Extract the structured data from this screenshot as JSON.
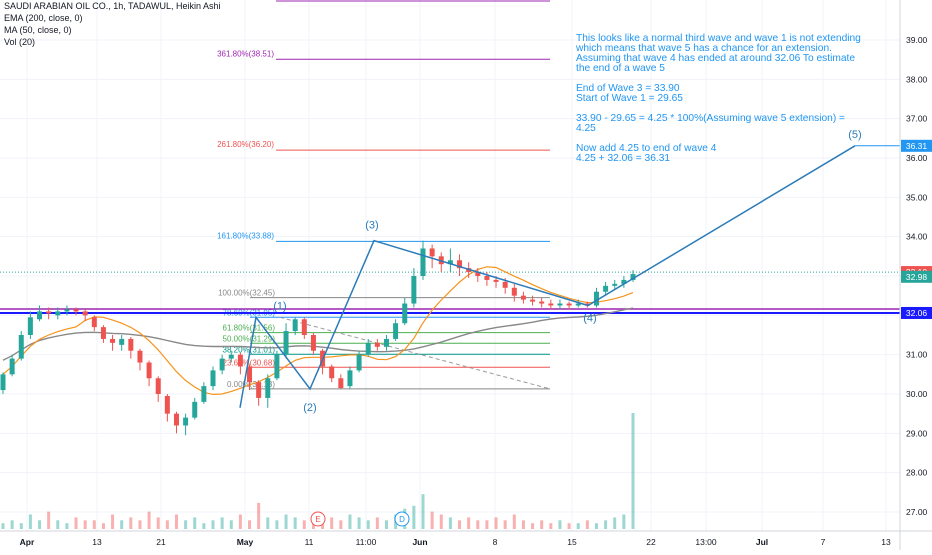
{
  "legend": {
    "title": "SAUDI ARABIAN OIL CO., 1h, TADAWUL, Heikin Ashi",
    "ema": "EMA (200, close, 0)",
    "ma": "MA (50, close, 0)",
    "vol": "Vol (20)"
  },
  "note": {
    "lines": [
      "This looks like a normal third wave and wave 1 is not extending",
      "which means that wave 5 has a chance for an extension.",
      "Assuming that wave 4 has ended at around 32.06 To estimate the end of a wave 5",
      "",
      "End of Wave 3 = 33.90",
      "Start of Wave 1 = 29.65",
      "",
      "33.90 - 29.65 = 4.25 * 100%(Assuming wave 5 extension) = 4.25",
      "",
      "Now add 4.25 to end of wave 4",
      "4.25 + 32.06 = 36.31"
    ]
  },
  "colors": {
    "up": "#26a69a",
    "down": "#ef5350",
    "ema": "#888888",
    "ma": "#f7931a",
    "wave": "#2b7bb9",
    "price_marker": "#ef5350",
    "last_marker": "#26a69a",
    "target_marker": "#2196f3",
    "support_marker": "#1a1aff"
  },
  "chart_data": {
    "type": "candlestick",
    "y_axis": {
      "ticks": [
        27.0,
        28.0,
        29.0,
        30.0,
        31.0,
        32.0,
        33.0,
        34.0,
        35.0,
        36.0,
        37.0,
        38.0,
        39.0
      ],
      "range": [
        26.55,
        39.95
      ],
      "side": "right"
    },
    "x_axis": {
      "ticks": [
        "Apr",
        "13",
        "21",
        "May",
        "11",
        "11:00",
        "Jun",
        "8",
        "15",
        "22",
        "13:00",
        "Jul",
        "7",
        "13"
      ]
    },
    "price_labels": [
      {
        "value": 36.31,
        "label": "36.31",
        "style": "target"
      },
      {
        "value": 33.1,
        "label": "33.10",
        "style": "price"
      },
      {
        "value": 32.98,
        "label": "32.98",
        "style": "last"
      },
      {
        "value": 32.06,
        "label": "32.06",
        "style": "support"
      }
    ],
    "fib_upper": [
      {
        "label": "361.80%(38.51)",
        "value": 38.51,
        "color": "#9c27b0"
      },
      {
        "label": "261.80%(36.20)",
        "value": 36.2,
        "color": "#ef5350"
      },
      {
        "label": "161.80%(33.88)",
        "value": 33.88,
        "color": "#2196f3"
      }
    ],
    "fib_lower": [
      {
        "label": "100.00%(32.45)",
        "value": 32.45,
        "color": "#888888"
      },
      {
        "label": "78.60%(31.95)",
        "value": 31.95,
        "color": "#2196f3"
      },
      {
        "label": "61.80%(31.56)",
        "value": 31.56,
        "color": "#4caf50"
      },
      {
        "label": "50.00%(31.29)",
        "value": 31.29,
        "color": "#4caf50"
      },
      {
        "label": "38.20%(31.01)",
        "value": 31.01,
        "color": "#009688"
      },
      {
        "label": "23.60%(30.68)",
        "value": 30.68,
        "color": "#ef5350"
      },
      {
        "label": "0.00%(30.13)",
        "value": 30.13,
        "color": "#888888"
      }
    ],
    "support_levels": [
      32.06,
      32.16
    ],
    "waves": [
      {
        "label": "(1)",
        "value": 31.95
      },
      {
        "label": "(2)",
        "value": 30.13
      },
      {
        "label": "(3)",
        "value": 33.9
      },
      {
        "label": "(4)",
        "value": 32.25
      },
      {
        "label": "(5)",
        "value": 36.31
      }
    ],
    "event_markers": [
      "E",
      "D"
    ],
    "candles": [
      [
        30.1,
        30.5,
        30.0,
        30.55
      ],
      [
        30.5,
        30.9,
        30.45,
        31.0
      ],
      [
        30.9,
        31.5,
        30.85,
        31.6
      ],
      [
        31.5,
        31.95,
        31.4,
        32.1
      ],
      [
        31.9,
        32.1,
        31.85,
        32.25
      ],
      [
        32.1,
        32.05,
        31.9,
        32.2
      ],
      [
        32.0,
        32.1,
        31.9,
        32.2
      ],
      [
        32.1,
        32.15,
        32.0,
        32.25
      ],
      [
        32.15,
        32.1,
        32.0,
        32.2
      ],
      [
        32.1,
        32.0,
        31.85,
        32.15
      ],
      [
        31.95,
        31.7,
        31.6,
        32.0
      ],
      [
        31.7,
        31.4,
        31.3,
        31.75
      ],
      [
        31.4,
        31.3,
        31.1,
        31.5
      ],
      [
        31.25,
        31.4,
        31.1,
        31.5
      ],
      [
        31.4,
        31.1,
        30.9,
        31.45
      ],
      [
        31.1,
        30.8,
        30.6,
        31.15
      ],
      [
        30.8,
        30.4,
        30.2,
        30.85
      ],
      [
        30.4,
        30.0,
        29.8,
        30.45
      ],
      [
        29.95,
        29.5,
        29.3,
        30.0
      ],
      [
        29.5,
        29.2,
        29.0,
        29.55
      ],
      [
        29.2,
        29.4,
        28.95,
        29.5
      ],
      [
        29.4,
        29.8,
        29.35,
        29.9
      ],
      [
        29.8,
        30.2,
        29.75,
        30.3
      ],
      [
        30.2,
        30.6,
        30.1,
        30.7
      ],
      [
        30.6,
        30.9,
        30.5,
        31.0
      ],
      [
        30.9,
        31.0,
        30.8,
        31.1
      ],
      [
        31.0,
        30.7,
        30.5,
        31.05
      ],
      [
        30.7,
        30.3,
        30.1,
        30.75
      ],
      [
        30.3,
        29.9,
        29.7,
        30.35
      ],
      [
        29.9,
        30.4,
        29.65,
        30.5
      ],
      [
        30.4,
        31.0,
        30.35,
        31.1
      ],
      [
        31.0,
        31.6,
        30.9,
        31.8
      ],
      [
        31.6,
        31.9,
        31.5,
        31.95
      ],
      [
        31.9,
        31.5,
        31.4,
        31.95
      ],
      [
        31.5,
        31.1,
        31.0,
        31.55
      ],
      [
        31.1,
        30.7,
        30.5,
        31.15
      ],
      [
        30.7,
        30.4,
        30.3,
        30.75
      ],
      [
        30.4,
        30.15,
        30.13,
        30.5
      ],
      [
        30.2,
        30.6,
        30.13,
        30.7
      ],
      [
        30.6,
        31.0,
        30.55,
        31.1
      ],
      [
        31.0,
        31.3,
        30.95,
        31.4
      ],
      [
        31.3,
        31.2,
        31.1,
        31.4
      ],
      [
        31.2,
        31.4,
        31.1,
        31.5
      ],
      [
        31.4,
        31.8,
        31.35,
        31.9
      ],
      [
        31.8,
        32.3,
        31.75,
        32.45
      ],
      [
        32.3,
        33.0,
        32.2,
        33.2
      ],
      [
        33.0,
        33.7,
        32.9,
        33.9
      ],
      [
        33.7,
        33.5,
        33.2,
        33.8
      ],
      [
        33.5,
        33.3,
        33.1,
        33.6
      ],
      [
        33.3,
        33.4,
        33.1,
        33.7
      ],
      [
        33.4,
        33.2,
        33.0,
        33.55
      ],
      [
        33.2,
        33.1,
        32.95,
        33.35
      ],
      [
        33.1,
        33.0,
        32.85,
        33.2
      ],
      [
        33.0,
        32.9,
        32.75,
        33.1
      ],
      [
        32.9,
        32.85,
        32.7,
        33.0
      ],
      [
        32.85,
        32.7,
        32.55,
        32.95
      ],
      [
        32.7,
        32.5,
        32.35,
        32.8
      ],
      [
        32.5,
        32.4,
        32.3,
        32.6
      ],
      [
        32.4,
        32.35,
        32.25,
        32.5
      ],
      [
        32.35,
        32.3,
        32.2,
        32.45
      ],
      [
        32.3,
        32.25,
        32.15,
        32.4
      ],
      [
        32.25,
        32.3,
        32.15,
        32.4
      ],
      [
        32.3,
        32.25,
        32.15,
        32.35
      ],
      [
        32.25,
        32.3,
        32.2,
        32.4
      ],
      [
        32.3,
        32.25,
        32.2,
        32.35
      ],
      [
        32.25,
        32.6,
        32.2,
        32.7
      ],
      [
        32.6,
        32.75,
        32.5,
        32.85
      ],
      [
        32.75,
        32.8,
        32.65,
        32.9
      ],
      [
        32.8,
        32.9,
        32.7,
        33.0
      ],
      [
        32.9,
        33.05,
        32.85,
        33.15
      ]
    ],
    "volumes": [
      2,
      3,
      2,
      5,
      3,
      6,
      3,
      2,
      4,
      3,
      3,
      2,
      5,
      3,
      4,
      3,
      6,
      4,
      3,
      5,
      3,
      4,
      2,
      3,
      4,
      3,
      5,
      3,
      9,
      4,
      3,
      5,
      4,
      3,
      2,
      3,
      4,
      3,
      5,
      4,
      3,
      4,
      3,
      5,
      7,
      8,
      12,
      6,
      5,
      4,
      3,
      4,
      3,
      3,
      4,
      3,
      5,
      3,
      2,
      3,
      2,
      3,
      2,
      2,
      3,
      2,
      3,
      4,
      5,
      40
    ]
  }
}
